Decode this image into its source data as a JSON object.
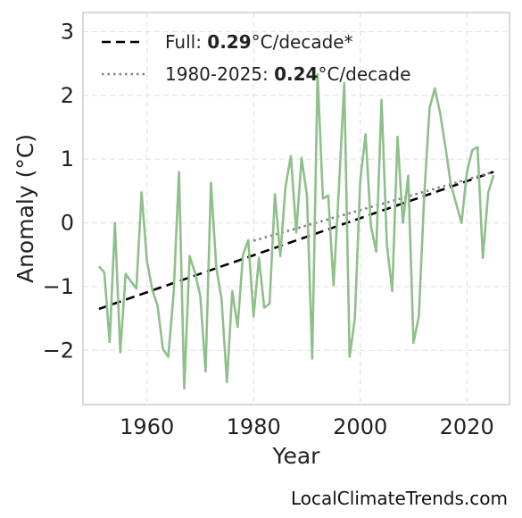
{
  "chart_data": {
    "type": "line",
    "xlabel": "Year",
    "ylabel": "Anomaly (°C)",
    "xlim": [
      1948,
      2028
    ],
    "ylim": [
      -2.85,
      3.3
    ],
    "x_ticks": [
      1960,
      1980,
      2000,
      2020
    ],
    "y_ticks": [
      -2,
      -1,
      0,
      1,
      2,
      3
    ],
    "grid": true,
    "legend_position": "top-left",
    "series": [
      {
        "style": "solid",
        "color": "#8fbf8a",
        "x": [
          1951,
          1952,
          1953,
          1954,
          1955,
          1956,
          1957,
          1958,
          1959,
          1960,
          1961,
          1962,
          1963,
          1964,
          1965,
          1966,
          1967,
          1968,
          1969,
          1970,
          1971,
          1972,
          1973,
          1974,
          1975,
          1976,
          1977,
          1978,
          1979,
          1980,
          1981,
          1982,
          1983,
          1984,
          1985,
          1986,
          1987,
          1988,
          1989,
          1990,
          1991,
          1992,
          1993,
          1994,
          1995,
          1996,
          1997,
          1998,
          1999,
          2000,
          2001,
          2002,
          2003,
          2004,
          2005,
          2006,
          2007,
          2008,
          2009,
          2010,
          2011,
          2012,
          2013,
          2014,
          2015,
          2016,
          2017,
          2018,
          2019,
          2020,
          2021,
          2022,
          2023,
          2024,
          2025
        ],
        "y": [
          -0.68,
          -0.78,
          -1.87,
          0.0,
          -2.03,
          -0.8,
          -0.92,
          -1.03,
          0.48,
          -0.6,
          -1.05,
          -1.3,
          -1.98,
          -2.1,
          -1.1,
          0.8,
          -2.6,
          -0.52,
          -0.78,
          -1.15,
          -2.33,
          0.63,
          -0.7,
          -1.2,
          -2.5,
          -1.07,
          -1.63,
          -0.5,
          -0.27,
          -1.47,
          -0.55,
          -1.33,
          -1.27,
          0.45,
          -0.52,
          0.57,
          1.05,
          -0.15,
          1.02,
          0.43,
          -2.13,
          2.33,
          0.38,
          0.43,
          -0.98,
          0.54,
          2.19,
          -2.1,
          -1.5,
          0.66,
          1.39,
          -0.05,
          -0.45,
          1.93,
          -0.35,
          -1.07,
          1.35,
          0.0,
          0.74,
          -1.88,
          -1.47,
          0.42,
          1.8,
          2.11,
          1.72,
          1.18,
          0.6,
          0.3,
          0.0,
          0.79,
          1.14,
          1.19,
          -0.55,
          0.47,
          0.75
        ]
      }
    ],
    "trendlines": [
      {
        "label_prefix": "Full: ",
        "rate": "0.29",
        "label_suffix": "°C/decade*",
        "style": "dashed",
        "color": "#000000",
        "x": [
          1951,
          2025
        ],
        "y": [
          -1.35,
          0.8
        ]
      },
      {
        "label_prefix": "1980-2025: ",
        "rate": "0.24",
        "label_suffix": "°C/decade",
        "style": "dotted",
        "color": "#808080",
        "x": [
          1980,
          2025
        ],
        "y": [
          -0.28,
          0.8
        ]
      }
    ]
  },
  "credit": "LocalClimateTrends.com"
}
